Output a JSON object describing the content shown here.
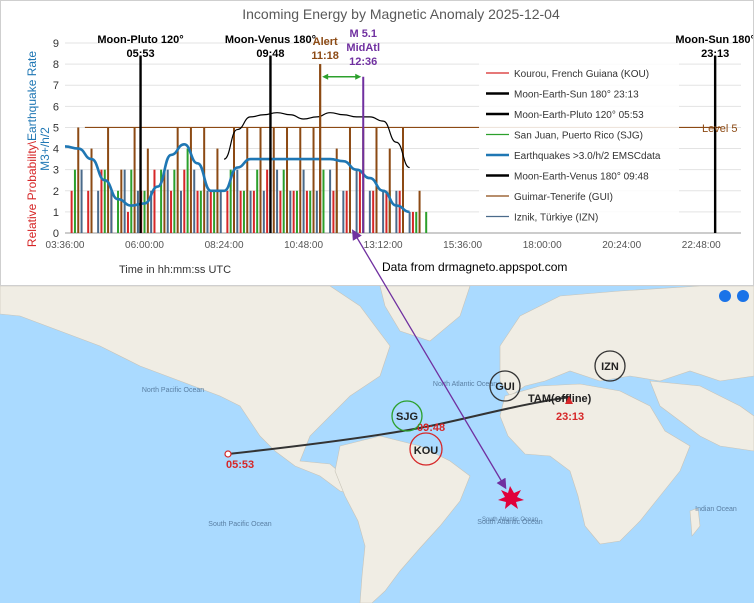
{
  "chart_data": {
    "type": "bar",
    "title": "Incoming Energy by Magnetic Anomaly 2025-12-04",
    "ylabel_parts": [
      "Relative Probability\\",
      "Earthquake Rate",
      "M3+/h/2"
    ],
    "xlabel": "Time in hh:mm:ss UTC",
    "ylim": [
      0,
      9
    ],
    "yticks": [
      "0",
      "1",
      "2",
      "3",
      "4",
      "5",
      "6",
      "7",
      "8",
      "9"
    ],
    "xticks": [
      "03:36:00",
      "06:00:00",
      "08:24:00",
      "10:48:00",
      "13:12:00",
      "15:36:00",
      "18:00:00",
      "20:24:00",
      "22:48:00"
    ],
    "xrange_hours": [
      3.6,
      24.0
    ],
    "level_line": {
      "value": 5,
      "label": "Level 5"
    },
    "source_note": "Data from drmagneto.appspot.com",
    "legend": [
      {
        "label": "Kourou, French Guiana (KOU)",
        "color": "#d62728"
      },
      {
        "label": "Moon-Earth-Sun 180° 23:13",
        "color": "#000000"
      },
      {
        "label": "Moon-Earth-Pluto 120° 05:53",
        "color": "#000000"
      },
      {
        "label": "San Juan, Puerto Rico (SJG)",
        "color": "#2ca02c"
      },
      {
        "label": "Earthquakes >3.0/h/2 EMSCdata",
        "color": "#1f77b4"
      },
      {
        "label": "Moon-Earth-Venus 180° 09:48",
        "color": "#000000"
      },
      {
        "label": "Guimar-Tenerife (GUI)",
        "color": "#8c4a14"
      },
      {
        "label": "Iznik, Türkiye (IZN)",
        "color": "#4a6a8a"
      }
    ],
    "events": [
      {
        "title": "Moon-Pluto 120°",
        "time": "05:53",
        "hour": 5.88,
        "value": 8.4,
        "color": "#000000"
      },
      {
        "title": "Moon-Venus 180°",
        "time": "09:48",
        "hour": 9.8,
        "value": 8.4,
        "color": "#000000"
      },
      {
        "title": "Moon-Sun 180°",
        "time": "23:13",
        "hour": 23.22,
        "value": 8.4,
        "color": "#000000"
      }
    ],
    "alert": {
      "title": "Alert",
      "time": "11:18",
      "hour": 11.3,
      "value": 8.0,
      "color": "#8c4a14"
    },
    "quake": {
      "title": "M 5.1",
      "place": "MidAtl",
      "time": "12:36",
      "hour": 12.6,
      "value": 7.4,
      "color": "#7030a0"
    },
    "earthquake_rate": {
      "color": "#1f77b4",
      "hours": [
        3.6,
        4.0,
        4.4,
        4.8,
        5.2,
        5.6,
        6.0,
        6.4,
        6.8,
        7.2,
        7.6,
        8.0,
        8.4,
        8.8,
        9.2,
        9.6,
        10.0,
        10.4,
        10.8,
        11.2,
        11.6,
        12.0,
        12.4,
        12.8,
        13.2,
        13.6,
        14.0
      ],
      "values": [
        4.1,
        4.0,
        3.5,
        2.5,
        1.6,
        1.3,
        1.4,
        2.2,
        3.7,
        4.2,
        3.3,
        2.0,
        2.0,
        3.1,
        3.5,
        3.5,
        3.5,
        3.5,
        3.5,
        3.5,
        3.5,
        3.4,
        3.0,
        2.6,
        2.0,
        1.3,
        1.0
      ]
    },
    "trend_curve": {
      "color": "#000000",
      "hours": [
        8.4,
        8.8,
        9.2,
        9.6,
        10.0,
        10.4,
        10.8,
        11.2,
        11.6,
        12.0,
        12.4,
        12.8,
        13.2,
        13.6,
        14.0
      ],
      "values": [
        3.5,
        4.9,
        5.5,
        5.6,
        5.7,
        5.6,
        5.4,
        5.5,
        5.7,
        5.6,
        5.5,
        5.5,
        5.3,
        4.3,
        3.1
      ]
    },
    "magnetometer_series": [
      {
        "code": "KOU",
        "color": "#d62728",
        "hours": [
          3.8,
          4.3,
          4.7,
          5.0,
          5.5,
          5.9,
          6.3,
          6.8,
          7.2,
          7.6,
          8.0,
          8.5,
          8.9,
          9.3,
          9.7,
          10.1,
          10.5,
          10.9,
          11.3,
          11.7,
          12.1,
          12.5,
          12.9,
          13.3,
          13.7,
          14.1
        ],
        "values": [
          2,
          2,
          3,
          2,
          1,
          2,
          3,
          2,
          3,
          2,
          2,
          2,
          2,
          2,
          3,
          2,
          2,
          2,
          3,
          2,
          2,
          3,
          2,
          2,
          2,
          1
        ]
      },
      {
        "code": "SJG",
        "color": "#2ca02c",
        "hours": [
          3.9,
          4.4,
          4.8,
          5.2,
          5.6,
          6.0,
          6.5,
          6.9,
          7.3,
          7.7,
          8.1,
          8.6,
          9.0,
          9.4,
          9.8,
          10.2,
          10.6,
          11.0,
          11.4,
          11.8,
          12.2,
          12.6,
          13.0,
          13.4,
          13.8,
          14.2,
          14.5
        ],
        "values": [
          3,
          2,
          3,
          2,
          3,
          2,
          3,
          3,
          4,
          2,
          2,
          3,
          2,
          3,
          2,
          3,
          2,
          2,
          3,
          2,
          3,
          2,
          2,
          2,
          2,
          1,
          1
        ]
      },
      {
        "code": "GUI",
        "color": "#8c4a14",
        "hours": [
          4.0,
          4.4,
          4.9,
          5.3,
          5.7,
          6.1,
          6.6,
          7.0,
          7.4,
          7.8,
          8.2,
          8.7,
          9.1,
          9.5,
          9.9,
          10.3,
          10.7,
          11.1,
          11.3,
          11.8,
          12.2,
          12.6,
          13.0,
          13.4,
          13.8,
          14.3
        ],
        "values": [
          5,
          4,
          5,
          3,
          5,
          4,
          3,
          5,
          5,
          5,
          4,
          5,
          5,
          5,
          5,
          5,
          5,
          5,
          8,
          4,
          5,
          5,
          5,
          4,
          5,
          2
        ]
      },
      {
        "code": "IZN",
        "color": "#4a6a8a",
        "hours": [
          4.1,
          4.6,
          5.0,
          5.4,
          5.8,
          6.2,
          6.7,
          7.1,
          7.5,
          7.9,
          8.3,
          8.8,
          9.2,
          9.6,
          10.0,
          10.4,
          10.8,
          11.2,
          11.6,
          12.0,
          12.4,
          12.8,
          13.2,
          13.6,
          14.0
        ],
        "values": [
          3,
          2,
          2,
          3,
          2,
          2,
          3,
          2,
          3,
          2,
          2,
          3,
          2,
          2,
          3,
          2,
          3,
          2,
          3,
          2,
          3,
          2,
          2,
          2,
          1
        ]
      }
    ]
  },
  "map": {
    "sea_color": "#aadaff",
    "land_color": "#f0ede4",
    "stations": [
      {
        "code": "SJG",
        "color": "#2ca02c"
      },
      {
        "code": "KOU",
        "color": "#d62728"
      },
      {
        "code": "GUI",
        "color": "#333333"
      },
      {
        "code": "IZN",
        "color": "#333333"
      }
    ],
    "tam_label": "TAM(offline)",
    "track_times": [
      {
        "label": "05:53",
        "color": "#d62728"
      },
      {
        "label": "09:48",
        "color": "#d62728"
      },
      {
        "label": "23:13",
        "color": "#d62728"
      }
    ],
    "labels": {
      "north_atlantic": "North Atlantic Ocean",
      "south_atlantic": "South Atlantic Ocean",
      "north_pacific": "North Pacific Ocean",
      "south_pacific": "South Pacific Ocean",
      "indian": "Indian Ocean",
      "epicenter_ocean": "South Atlantic Ocean"
    }
  }
}
